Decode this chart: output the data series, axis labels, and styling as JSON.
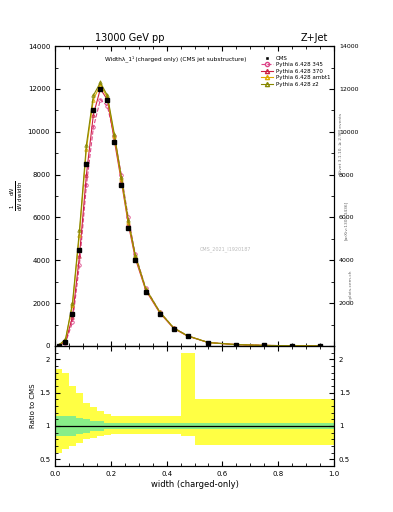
{
  "title_top": "13000 GeV pp",
  "title_right": "Z+Jet",
  "plot_title": "Widthλ_1¹ (charged only) (CMS jet substructure)",
  "xlabel": "width (charged-only)",
  "ylabel_ratio": "Ratio to CMS",
  "side_label_right": "Rivet 3.1.10, ≥ 2.9M events",
  "side_label_arxiv": "[arXiv:1306.3436]",
  "side_label_mcplots": "mcplots.cern.ch",
  "watermark": "CMS_2021_I1920187",
  "xlim": [
    0,
    1
  ],
  "ylim_main": [
    0,
    14000
  ],
  "ylim_ratio": [
    0.4,
    2.2
  ],
  "yticks_main": [
    0,
    2000,
    4000,
    6000,
    8000,
    10000,
    12000,
    14000
  ],
  "yticks_ratio": [
    0.5,
    1.0,
    1.5,
    2.0
  ],
  "x_edges": [
    0.0,
    0.025,
    0.05,
    0.075,
    0.1,
    0.125,
    0.15,
    0.175,
    0.2,
    0.225,
    0.25,
    0.275,
    0.3,
    0.35,
    0.4,
    0.45,
    0.5,
    0.6,
    0.7,
    0.8,
    0.9,
    1.0
  ],
  "x_centers": [
    0.0125,
    0.0375,
    0.0625,
    0.0875,
    0.1125,
    0.1375,
    0.1625,
    0.1875,
    0.2125,
    0.2375,
    0.2625,
    0.2875,
    0.325,
    0.375,
    0.425,
    0.475,
    0.55,
    0.65,
    0.75,
    0.85,
    0.95
  ],
  "cms_data": [
    20,
    200,
    1500,
    4500,
    8500,
    11000,
    12000,
    11500,
    9500,
    7500,
    5500,
    4000,
    2500,
    1500,
    800,
    450,
    150,
    60,
    25,
    10,
    4
  ],
  "py345_data": [
    15,
    150,
    1100,
    3800,
    7500,
    10200,
    11500,
    11200,
    9800,
    8000,
    6000,
    4300,
    2700,
    1600,
    850,
    480,
    160,
    65,
    27,
    11,
    4
  ],
  "py370_data": [
    18,
    180,
    1350,
    4200,
    8000,
    10800,
    12000,
    11500,
    9600,
    7700,
    5700,
    4100,
    2600,
    1550,
    820,
    460,
    155,
    62,
    26,
    10,
    4
  ],
  "pyambt1_data": [
    25,
    280,
    1900,
    5200,
    9200,
    11500,
    12200,
    11600,
    9800,
    7800,
    5800,
    4200,
    2650,
    1580,
    840,
    470,
    158,
    63,
    26,
    10,
    4
  ],
  "pyz2_data": [
    28,
    310,
    2000,
    5400,
    9400,
    11700,
    12300,
    11700,
    9900,
    7900,
    5900,
    4250,
    2680,
    1600,
    850,
    475,
    160,
    64,
    27,
    11,
    4
  ],
  "green_band_lo": [
    0.85,
    0.85,
    0.85,
    0.88,
    0.9,
    0.92,
    0.93,
    0.95,
    0.95,
    0.95,
    0.95,
    0.95,
    0.95,
    0.95,
    0.95,
    0.95,
    0.95,
    0.95,
    0.95,
    0.95,
    0.95
  ],
  "green_band_hi": [
    1.15,
    1.15,
    1.15,
    1.12,
    1.1,
    1.08,
    1.07,
    1.05,
    1.05,
    1.05,
    1.05,
    1.05,
    1.05,
    1.05,
    1.05,
    1.05,
    1.05,
    1.05,
    1.05,
    1.05,
    1.05
  ],
  "yellow_band_lo_data": [
    0.6,
    0.65,
    0.7,
    0.75,
    0.8,
    0.82,
    0.85,
    0.87,
    0.88,
    0.88,
    0.88,
    0.88,
    0.88,
    0.88,
    0.88,
    0.85,
    0.72,
    0.72,
    0.72,
    0.72,
    0.72
  ],
  "yellow_band_hi_data": [
    1.85,
    1.8,
    1.6,
    1.5,
    1.35,
    1.28,
    1.22,
    1.18,
    1.15,
    1.15,
    1.15,
    1.15,
    1.15,
    1.15,
    1.15,
    2.1,
    1.4,
    1.4,
    1.4,
    1.4,
    1.4
  ],
  "color_cms": "black",
  "color_py345": "#dd4488",
  "color_py370": "#cc2244",
  "color_pyambt1": "#ddaa00",
  "color_pyz2": "#888800",
  "bg_color": "white"
}
